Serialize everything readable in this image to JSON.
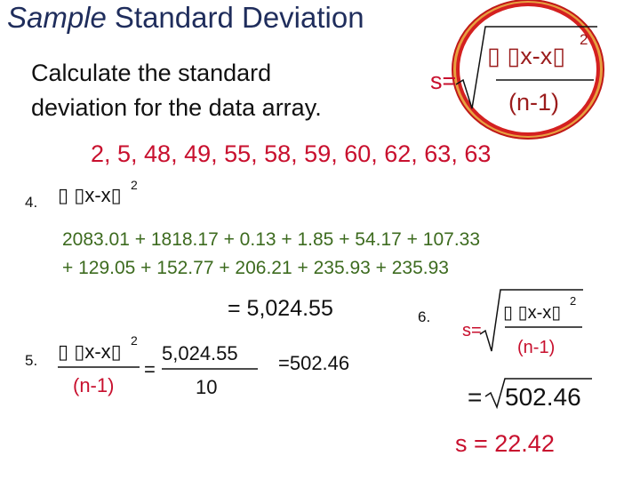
{
  "header": {
    "title": {
      "italic": "Sample",
      "rest": "Standard Deviation"
    }
  },
  "instruction": [
    "Calculate the standard",
    "deviation for the data array."
  ],
  "formula": {
    "lhs": "s=",
    "numerator": "▯ ▯x-x▯",
    "exponent": "2",
    "denominator": "(n-1)"
  },
  "data_array": "2, 5, 48, 49, 55, 58, 59, 60, 62, 63, 63",
  "steps": {
    "step4": {
      "number": "4.",
      "numerator": "▯ ▯x-x▯",
      "exponent": "2",
      "sum_lines": [
        "2083.01 + 1818.17 + 0.13 + 1.85 + 54.17 + 107.33",
        "+ 129.05 + 152.77 + 206.21 + 235.93 + 235.93"
      ],
      "total": "= 5,024.55"
    },
    "step5": {
      "number": "5.",
      "numerator": "▯ ▯x-x▯",
      "exponent": "2",
      "denominator": "(n-1)",
      "equals": "=",
      "fraction_numerator": "5,024.55",
      "fraction_denominator": "10",
      "result": "=502.46"
    },
    "step6": {
      "number": "6.",
      "lhs": "s=",
      "numerator": "▯ ▯x-x▯",
      "exponent": "2",
      "denominator": "(n-1)",
      "equals": "=",
      "radicand": "502.46",
      "answer": "s = 22.42"
    }
  }
}
